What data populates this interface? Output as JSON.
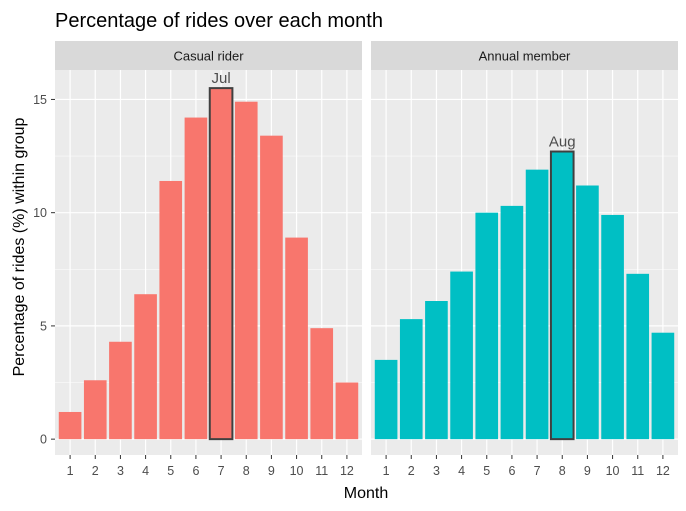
{
  "chart_data": {
    "type": "bar",
    "title": "Percentage of rides over each month",
    "xlabel": "Month",
    "ylabel": "Percentage of rides (%) within group",
    "ylim": [
      -0.7,
      16.3
    ],
    "yticks": [
      0,
      5,
      10,
      15
    ],
    "categories": [
      "1",
      "2",
      "3",
      "4",
      "5",
      "6",
      "7",
      "8",
      "9",
      "10",
      "11",
      "12"
    ],
    "grid": true,
    "legend": "none",
    "series": [
      {
        "name": "Casual rider",
        "color": "#F8766D",
        "values": [
          1.2,
          2.6,
          4.3,
          6.4,
          11.4,
          14.2,
          15.5,
          14.9,
          13.4,
          8.9,
          4.9,
          2.5
        ],
        "highlight_index": 6,
        "highlight_label": "Jul"
      },
      {
        "name": "Annual member",
        "color": "#00BFC4",
        "values": [
          3.5,
          5.3,
          6.1,
          7.4,
          10.0,
          10.3,
          11.9,
          12.7,
          11.2,
          9.9,
          7.3,
          4.7
        ],
        "highlight_index": 7,
        "highlight_label": "Aug"
      }
    ]
  },
  "colors": {
    "panel_background": "#EBEBEB",
    "grid_major": "#FFFFFF",
    "strip_background": "#D9D9D9",
    "highlight_outline": "#404040",
    "tick_text": "#4D4D4D"
  }
}
